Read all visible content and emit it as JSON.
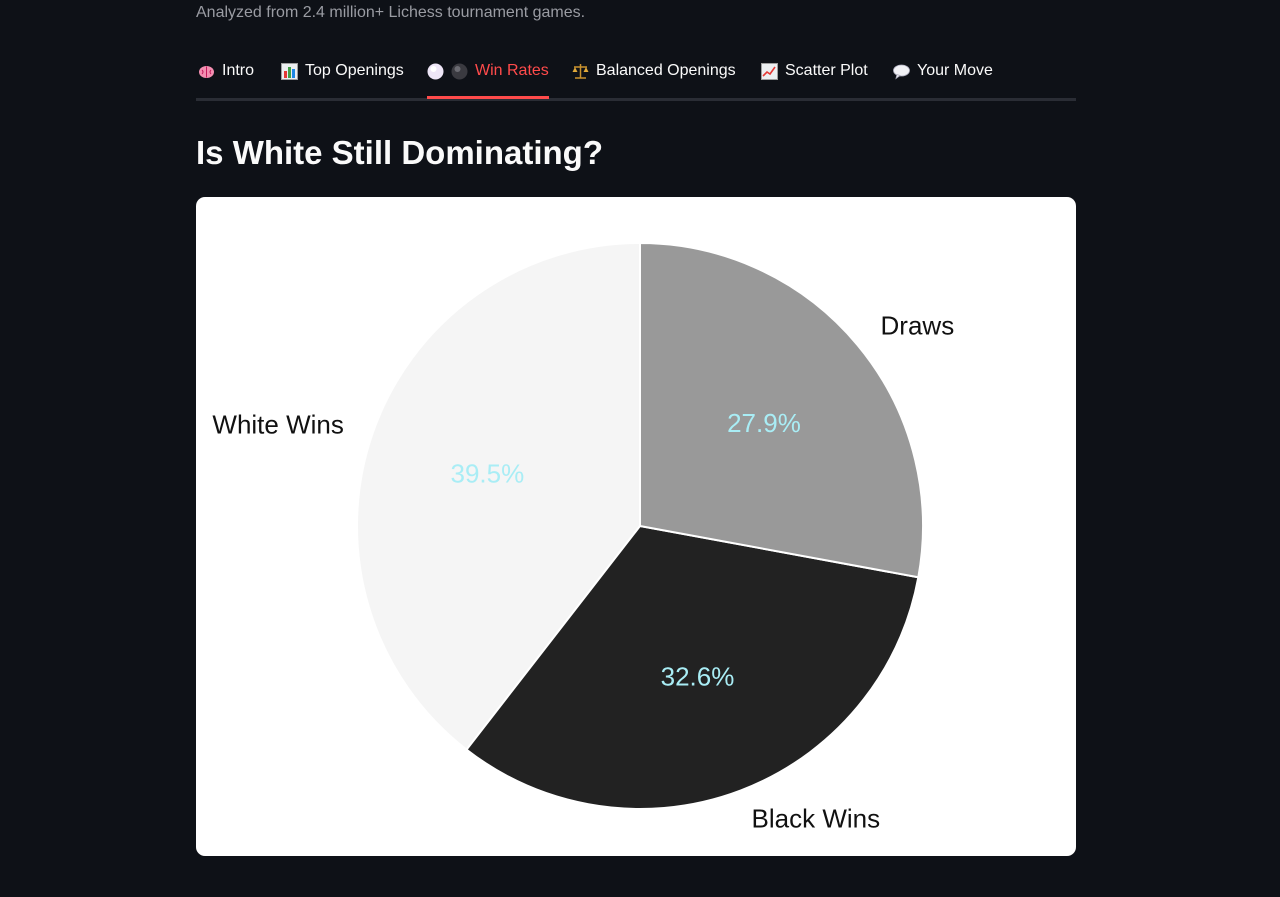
{
  "caption": "Analyzed from 2.4 million+ Lichess tournament games.",
  "tabs": [
    {
      "label": "Intro",
      "icon": "brain-icon"
    },
    {
      "label": "Top Openings",
      "icon": "bar-chart-icon"
    },
    {
      "label": "Win Rates",
      "icon": "white-and-black-circle-icons",
      "active": true
    },
    {
      "label": "Balanced Openings",
      "icon": "balance-scale-icon"
    },
    {
      "label": "Scatter Plot",
      "icon": "chart-increasing-icon"
    },
    {
      "label": "Your Move",
      "icon": "speech-bubble-icon"
    }
  ],
  "section": {
    "title": "Is White Still Dominating?"
  },
  "colors": {
    "accent": "#ff4b4b",
    "background": "#0e1117",
    "pct_label": "#a9edf5"
  },
  "chart_data": {
    "type": "pie",
    "categories": [
      "White Wins",
      "Black Wins",
      "Draws"
    ],
    "values": [
      39.5,
      32.6,
      27.9
    ],
    "percent_labels": [
      "39.5%",
      "32.6%",
      "27.9%"
    ],
    "colors": [
      "#f5f5f5",
      "#222222",
      "#999999"
    ]
  }
}
